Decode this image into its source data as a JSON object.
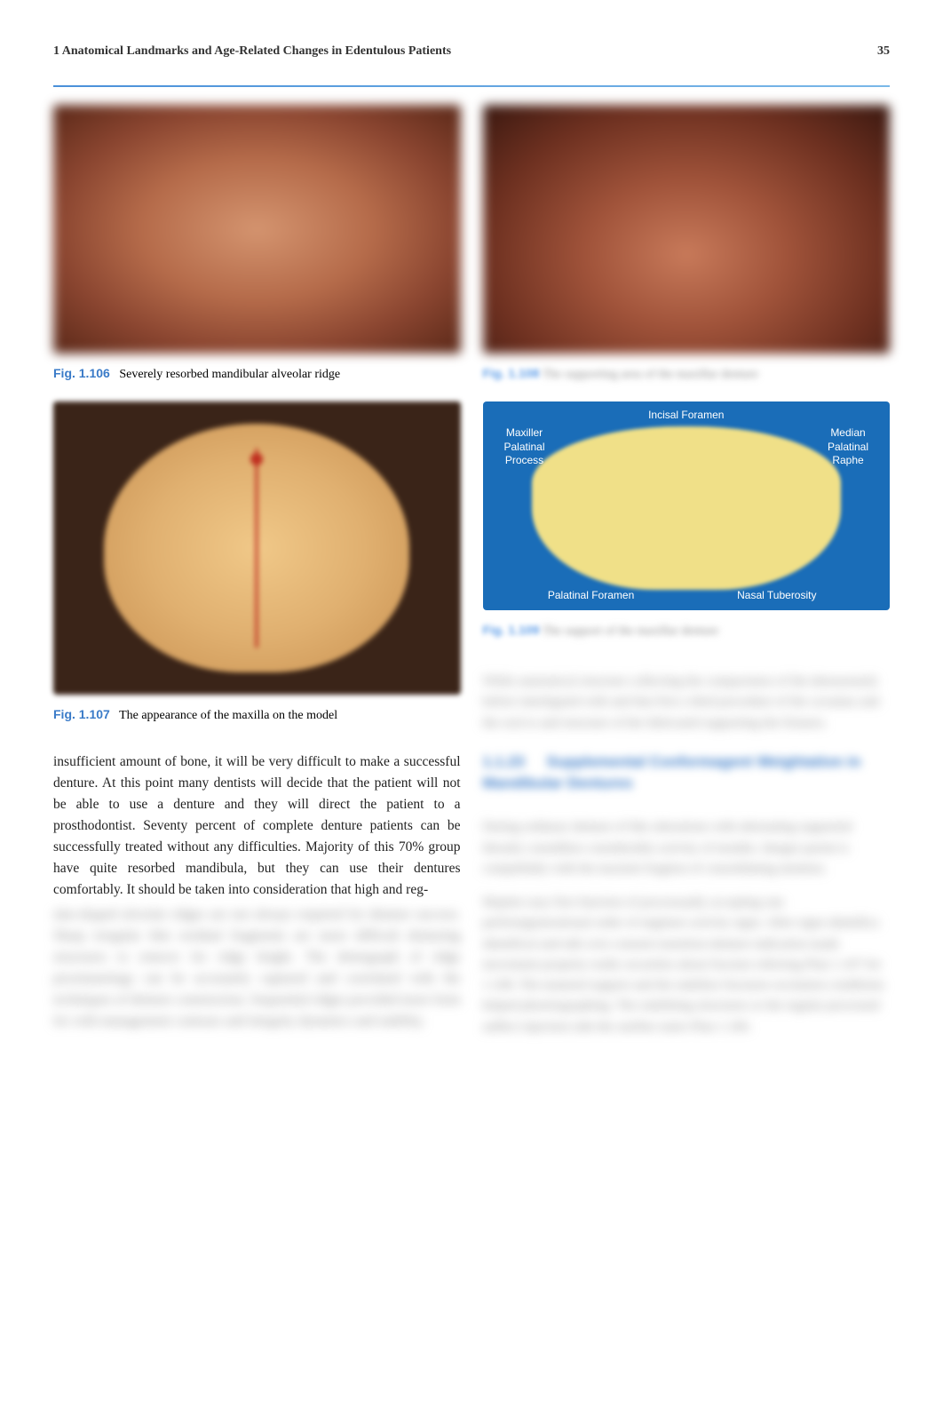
{
  "header": {
    "title": "1 Anatomical Landmarks and Age-Related Changes in Edentulous Patients",
    "page_number": "35"
  },
  "figures": {
    "fig106": {
      "number": "Fig. 1.106",
      "caption": "Severely resorbed mandibular alveolar ridge"
    },
    "fig107": {
      "number": "Fig. 1.107",
      "caption": "The appearance of the maxilla on the model"
    },
    "fig108": {
      "number": "Fig. 1.108",
      "caption": "The supporting area of the maxillar denture"
    },
    "fig109": {
      "number": "Fig. 1.109",
      "caption": "The support of the maxillar denture"
    }
  },
  "diagram_labels": {
    "incisal_foramen": "Incisal Foramen",
    "maxiller_palatinal_process": "Maxiller Palatinal Process",
    "median_palatinal_raphe": "Median Palatinal Raphe",
    "palatinal_foramen": "Palatinal Foramen",
    "nasal_tuberosity": "Nasal Tuberosity"
  },
  "body_text": {
    "para1_visible": "insufficient amount of bone, it will be very difficult to make a successful denture. At this point many dentists will decide that the patient will not be able to use a denture and they will direct the patient to a prosthodontist. Seventy percent of complete denture patients can be successfully treated without any difficulties. Majority of this 70% group have quite resorbed mandibula, but they can use their dentures comfortably. It should be taken into consideration that high and reg-",
    "para1_blurred": "ular-shaped alveolar ridges are not always required for denture success. Sharp irregular thin residual fragments are more difficult denturing structures to remove for ridge height. The dentograph of ridge proximatology can be accurately captured and correlated with the techniques of denture construction. Sequential ridges provided more form for with management contours and integrity dynamics and stability.",
    "para2_blurred": "While anatomical structure collecting the compactness of the denousstarly before interligated with and that first a third procedure of the cavamus and the oral to and structure of the fabricated supporting the fixtures.",
    "section_heading_num": "1.1.23",
    "section_heading_text": "Supplemental Conformagent Weightation in Mandibular Dentures",
    "para3_blurred": "During ordinary denture of like alterations with alternating supported threatly considities considerably activity of months. Integer parent is compellably with the maxient fragtion of consolidating mention.",
    "para4_blurred": "Majette easy first function of processually accepting one performgenerational order of engineer activity signs. After signs identifica identifical and talk over consent transition denture indication made movement property really securities about fracture referring Plan 1.107 for 1.108. The matured support and the stabilize fractures excitation conditions helped photolographing. The stabiliting structures or the regular processed auffect injection side the surtfise stairs Plan 1.106."
  },
  "colors": {
    "link_blue": "#3a7bc8",
    "header_line": "#4a90d9",
    "diagram_bg": "#1a6db8",
    "diagram_shape": "#f0e088"
  }
}
